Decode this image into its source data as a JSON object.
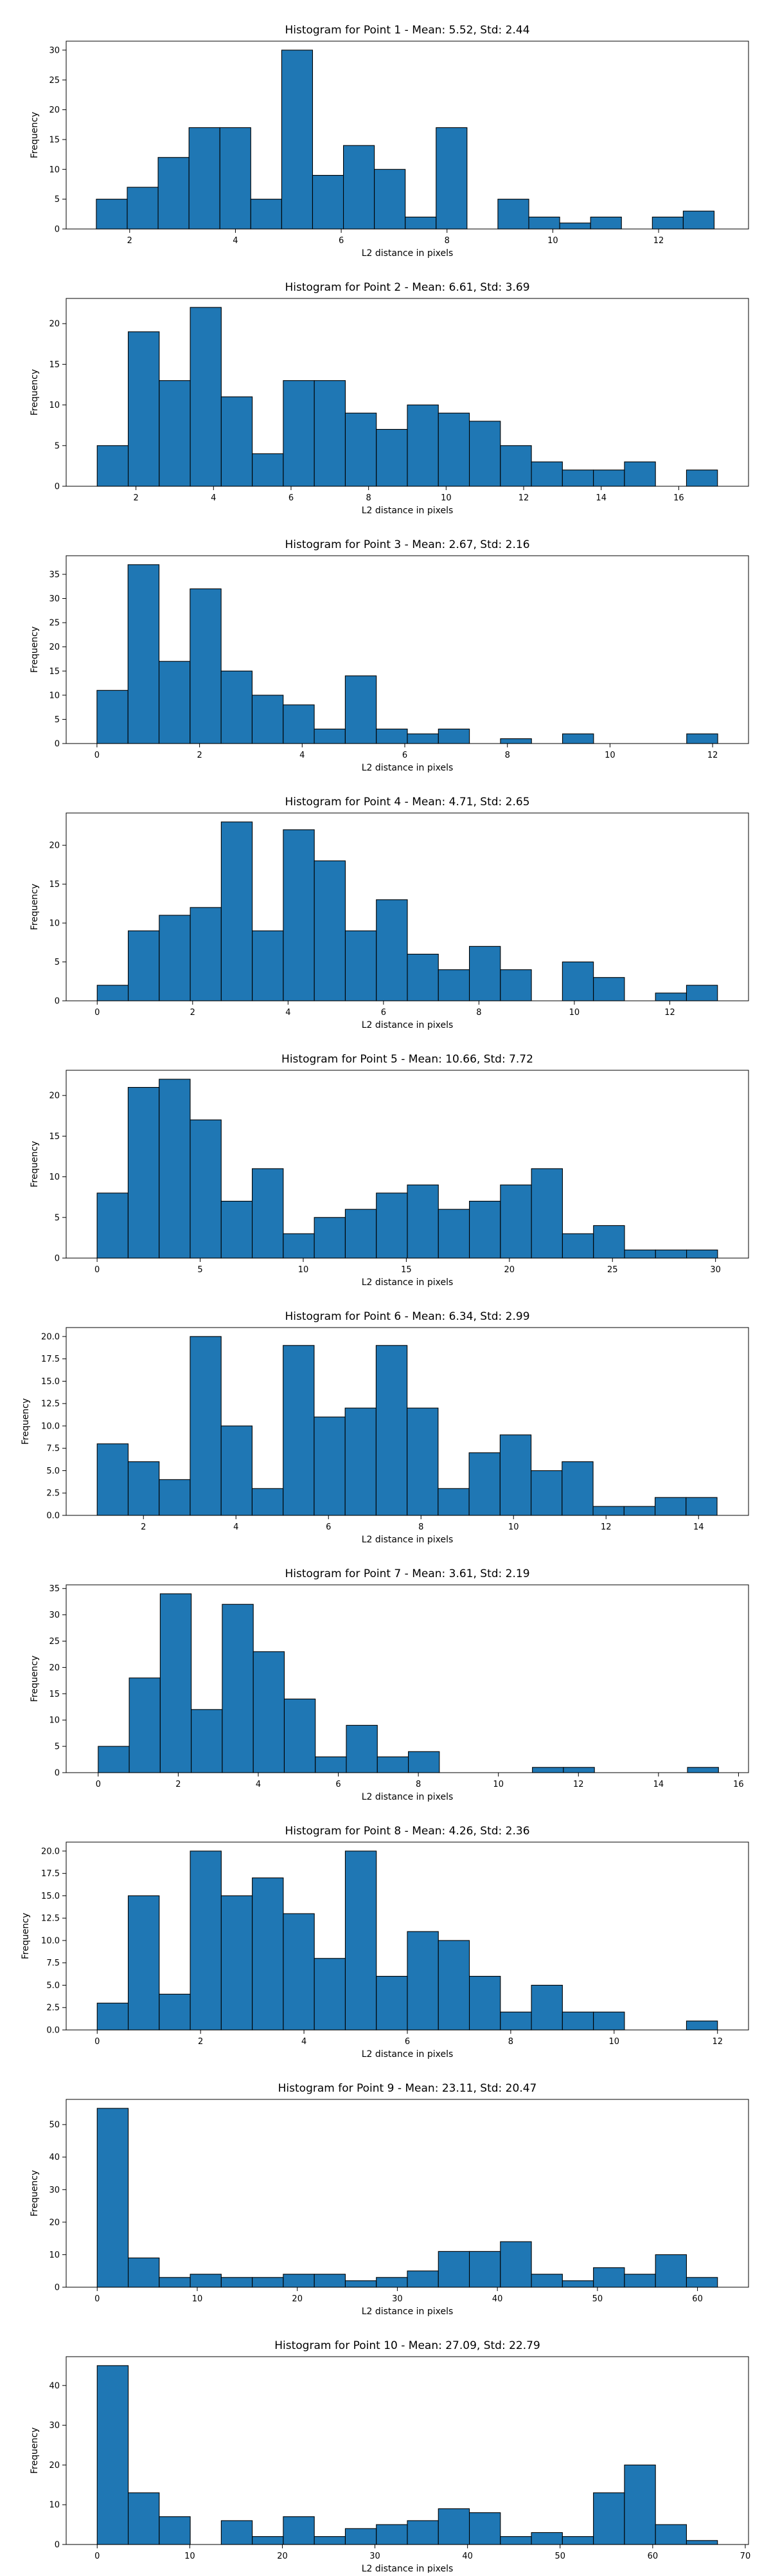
{
  "chart_data": [
    {
      "type": "bar",
      "title": "Histogram for Point 1 - Mean: 5.52, Std: 2.44",
      "xlabel": "L2 distance in pixels",
      "ylabel": "Frequency",
      "xlim": [
        0.8,
        13.7
      ],
      "ylim": [
        0,
        31.5
      ],
      "xticks": [
        2,
        4,
        6,
        8,
        10,
        12
      ],
      "yticks": [
        0,
        5,
        10,
        15,
        20,
        25,
        30
      ],
      "ytick_labels": [
        "0",
        "5",
        "10",
        "15",
        "20",
        "25",
        "30"
      ],
      "bin_start": 1.37,
      "bin_width": 0.584,
      "values": [
        5,
        7,
        12,
        17,
        17,
        5,
        30,
        9,
        14,
        10,
        2,
        17,
        0,
        5,
        2,
        1,
        2,
        0,
        2,
        3
      ]
    },
    {
      "type": "bar",
      "title": "Histogram for Point 2 - Mean: 6.61, Std: 3.69",
      "xlabel": "L2 distance in pixels",
      "ylabel": "Frequency",
      "xlim": [
        0.2,
        17.8
      ],
      "ylim": [
        0,
        23.1
      ],
      "xticks": [
        2,
        4,
        6,
        8,
        10,
        12,
        14,
        16
      ],
      "yticks": [
        0,
        5,
        10,
        15,
        20
      ],
      "ytick_labels": [
        "0",
        "5",
        "10",
        "15",
        "20"
      ],
      "bin_start": 1.0,
      "bin_width": 0.8,
      "values": [
        5,
        19,
        13,
        22,
        11,
        4,
        13,
        13,
        9,
        7,
        10,
        9,
        8,
        5,
        3,
        2,
        2,
        3,
        0,
        2
      ]
    },
    {
      "type": "bar",
      "title": "Histogram for Point 3 - Mean: 2.67, Std: 2.16",
      "xlabel": "L2 distance in pixels",
      "ylabel": "Frequency",
      "xlim": [
        -0.6,
        12.7
      ],
      "ylim": [
        0,
        38.85
      ],
      "xticks": [
        0,
        2,
        4,
        6,
        8,
        10,
        12
      ],
      "yticks": [
        0,
        5,
        10,
        15,
        20,
        25,
        30,
        35
      ],
      "ytick_labels": [
        "0",
        "5",
        "10",
        "15",
        "20",
        "25",
        "30",
        "35"
      ],
      "bin_start": 0.0,
      "bin_width": 0.605,
      "values": [
        11,
        37,
        17,
        32,
        15,
        10,
        8,
        3,
        14,
        3,
        2,
        3,
        0,
        1,
        0,
        2,
        0,
        0,
        0,
        2
      ]
    },
    {
      "type": "bar",
      "title": "Histogram for Point 4 - Mean: 4.71, Std: 2.65",
      "xlabel": "L2 distance in pixels",
      "ylabel": "Frequency",
      "xlim": [
        -0.65,
        13.65
      ],
      "ylim": [
        0,
        24.15
      ],
      "xticks": [
        0,
        2,
        4,
        6,
        8,
        10,
        12
      ],
      "yticks": [
        0,
        5,
        10,
        15,
        20
      ],
      "ytick_labels": [
        "0",
        "5",
        "10",
        "15",
        "20"
      ],
      "bin_start": 0.0,
      "bin_width": 0.65,
      "values": [
        2,
        9,
        11,
        12,
        23,
        9,
        22,
        18,
        9,
        13,
        6,
        4,
        7,
        4,
        0,
        5,
        3,
        0,
        1,
        2
      ]
    },
    {
      "type": "bar",
      "title": "Histogram for Point 5 - Mean: 10.66, Std: 7.72",
      "xlabel": "L2 distance in pixels",
      "ylabel": "Frequency",
      "xlim": [
        -1.5,
        31.6
      ],
      "ylim": [
        0,
        23.1
      ],
      "xticks": [
        0,
        5,
        10,
        15,
        20,
        25,
        30
      ],
      "yticks": [
        0,
        5,
        10,
        15,
        20
      ],
      "ytick_labels": [
        "0",
        "5",
        "10",
        "15",
        "20"
      ],
      "bin_start": 0.0,
      "bin_width": 1.505,
      "values": [
        8,
        21,
        22,
        17,
        7,
        11,
        3,
        5,
        6,
        8,
        9,
        6,
        7,
        9,
        11,
        3,
        4,
        1,
        1,
        1
      ]
    },
    {
      "type": "bar",
      "title": "Histogram for Point 6 - Mean: 6.34, Std: 2.99",
      "xlabel": "L2 distance in pixels",
      "ylabel": "Frequency",
      "xlim": [
        0.33,
        15.08
      ],
      "ylim": [
        0,
        21.0
      ],
      "xticks": [
        2,
        4,
        6,
        8,
        10,
        12,
        14
      ],
      "yticks": [
        0,
        2.5,
        5,
        7.5,
        10,
        12.5,
        15,
        17.5,
        20
      ],
      "ytick_labels": [
        "0.0",
        "2.5",
        "5.0",
        "7.5",
        "10.0",
        "12.5",
        "15.0",
        "17.5",
        "20.0"
      ],
      "bin_start": 1.0,
      "bin_width": 0.67,
      "values": [
        8,
        6,
        4,
        20,
        10,
        3,
        19,
        11,
        12,
        19,
        12,
        3,
        7,
        9,
        5,
        6,
        1,
        1,
        2,
        2
      ]
    },
    {
      "type": "bar",
      "title": "Histogram for Point 7 - Mean: 3.61, Std: 2.19",
      "xlabel": "L2 distance in pixels",
      "ylabel": "Frequency",
      "xlim": [
        -0.8,
        16.25
      ],
      "ylim": [
        0,
        35.7
      ],
      "xticks": [
        0,
        2,
        4,
        6,
        8,
        10,
        12,
        14,
        16
      ],
      "yticks": [
        0,
        5,
        10,
        15,
        20,
        25,
        30,
        35
      ],
      "ytick_labels": [
        "0",
        "5",
        "10",
        "15",
        "20",
        "25",
        "30",
        "35"
      ],
      "bin_start": 0.0,
      "bin_width": 0.775,
      "values": [
        5,
        18,
        34,
        12,
        32,
        23,
        14,
        3,
        9,
        3,
        4,
        0,
        0,
        0,
        1,
        1,
        0,
        0,
        0,
        1
      ]
    },
    {
      "type": "bar",
      "title": "Histogram for Point 8 - Mean: 4.26, Std: 2.36",
      "xlabel": "L2 distance in pixels",
      "ylabel": "Frequency",
      "xlim": [
        -0.6,
        12.6
      ],
      "ylim": [
        0,
        21.0
      ],
      "xticks": [
        0,
        2,
        4,
        6,
        8,
        10,
        12
      ],
      "yticks": [
        0,
        2.5,
        5,
        7.5,
        10,
        12.5,
        15,
        17.5,
        20
      ],
      "ytick_labels": [
        "0.0",
        "2.5",
        "5.0",
        "7.5",
        "10.0",
        "12.5",
        "15.0",
        "17.5",
        "20.0"
      ],
      "bin_start": 0.0,
      "bin_width": 0.6,
      "values": [
        3,
        15,
        4,
        20,
        15,
        17,
        13,
        8,
        20,
        6,
        11,
        10,
        6,
        2,
        5,
        2,
        2,
        0,
        0,
        1
      ]
    },
    {
      "type": "bar",
      "title": "Histogram for Point 9 - Mean: 23.11, Std: 20.47",
      "xlabel": "L2 distance in pixels",
      "ylabel": "Frequency",
      "xlim": [
        -3.1,
        65.1
      ],
      "ylim": [
        0,
        57.75
      ],
      "xticks": [
        0,
        10,
        20,
        30,
        40,
        50,
        60
      ],
      "yticks": [
        0,
        10,
        20,
        30,
        40,
        50
      ],
      "ytick_labels": [
        "0",
        "10",
        "20",
        "30",
        "40",
        "50"
      ],
      "bin_start": 0.0,
      "bin_width": 3.1,
      "values": [
        55,
        9,
        3,
        4,
        3,
        3,
        4,
        4,
        2,
        3,
        5,
        11,
        11,
        14,
        4,
        2,
        6,
        4,
        10,
        3
      ]
    },
    {
      "type": "bar",
      "title": "Histogram for Point 10 - Mean: 27.09, Std: 22.79",
      "xlabel": "L2 distance in pixels",
      "ylabel": "Frequency",
      "xlim": [
        -3.35,
        70.35
      ],
      "ylim": [
        0,
        47.25
      ],
      "xticks": [
        0,
        10,
        20,
        30,
        40,
        50,
        60,
        70
      ],
      "yticks": [
        0,
        10,
        20,
        30,
        40
      ],
      "ytick_labels": [
        "0",
        "10",
        "20",
        "30",
        "40"
      ],
      "bin_start": 0.0,
      "bin_width": 3.35,
      "values": [
        45,
        13,
        7,
        0,
        6,
        2,
        7,
        2,
        4,
        5,
        6,
        9,
        8,
        2,
        3,
        2,
        13,
        20,
        5,
        1
      ]
    }
  ]
}
